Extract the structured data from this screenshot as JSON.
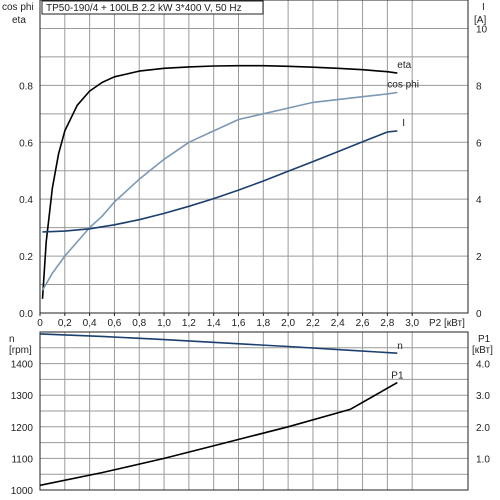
{
  "header": {
    "title": "TP50-190/4 + 100LB   2.2 kW   3*400 V, 50 Hz"
  },
  "colors": {
    "eta": "#000000",
    "cos_phi": "#7b98b5",
    "current": "#1b3f6e",
    "speed": "#1b3f6e",
    "p1": "#000000",
    "grid": "#9a9a9a"
  },
  "chart_data": [
    {
      "type": "line",
      "xlabel": "P2 [кВт]",
      "x_ticks": [
        "0",
        "0,2",
        "0,4",
        "0,6",
        "0,8",
        "1,0",
        "1,2",
        "1,4",
        "1,6",
        "1,8",
        "2,0",
        "2,2",
        "2,4",
        "2,6",
        "2,8",
        "3,0"
      ],
      "xlim": [
        0,
        3.45
      ],
      "left_axis": {
        "label_top": "cos phi",
        "label_bottom": "eta",
        "ylim": [
          0,
          1.1
        ],
        "ticks": [
          "0.0",
          "0.2",
          "0.4",
          "0.6",
          "0.8"
        ]
      },
      "right_axis": {
        "label_top": "I",
        "label_bottom": "[A]",
        "ylim": [
          0,
          11
        ],
        "ticks": [
          "0",
          "2",
          "4",
          "6",
          "8",
          "10"
        ]
      },
      "grid": true,
      "series": [
        {
          "name": "eta",
          "axis": "left",
          "x": [
            0.02,
            0.05,
            0.1,
            0.15,
            0.2,
            0.3,
            0.4,
            0.5,
            0.6,
            0.7,
            0.8,
            1.0,
            1.2,
            1.4,
            1.6,
            1.8,
            2.0,
            2.2,
            2.4,
            2.6,
            2.8,
            2.88
          ],
          "y": [
            0.05,
            0.25,
            0.44,
            0.56,
            0.64,
            0.73,
            0.78,
            0.81,
            0.83,
            0.84,
            0.85,
            0.86,
            0.865,
            0.868,
            0.869,
            0.869,
            0.867,
            0.864,
            0.86,
            0.855,
            0.848,
            0.843
          ]
        },
        {
          "name": "cos phi",
          "axis": "left",
          "x": [
            0.02,
            0.1,
            0.2,
            0.3,
            0.4,
            0.5,
            0.6,
            0.8,
            1.0,
            1.2,
            1.4,
            1.6,
            1.8,
            2.0,
            2.2,
            2.4,
            2.6,
            2.8,
            2.88
          ],
          "y": [
            0.08,
            0.14,
            0.2,
            0.25,
            0.3,
            0.34,
            0.39,
            0.47,
            0.54,
            0.6,
            0.64,
            0.68,
            0.7,
            0.72,
            0.74,
            0.75,
            0.76,
            0.77,
            0.775
          ]
        },
        {
          "name": "I",
          "axis": "right",
          "x": [
            0.02,
            0.2,
            0.4,
            0.6,
            0.8,
            1.0,
            1.2,
            1.4,
            1.6,
            1.8,
            2.0,
            2.2,
            2.4,
            2.6,
            2.8,
            2.88
          ],
          "y": [
            2.85,
            2.88,
            2.96,
            3.1,
            3.28,
            3.5,
            3.75,
            4.02,
            4.32,
            4.64,
            4.98,
            5.32,
            5.67,
            6.02,
            6.36,
            6.4
          ]
        }
      ]
    },
    {
      "type": "line",
      "xlim": [
        0,
        3.45
      ],
      "left_axis": {
        "label_top": "n",
        "label_bottom": "[rpm]",
        "ylim": [
          1000,
          1500
        ],
        "ticks": [
          "1000",
          "1100",
          "1200",
          "1300",
          "1400"
        ]
      },
      "right_axis": {
        "label_top": "P1",
        "label_bottom": "[кВт]",
        "ylim": [
          0,
          5
        ],
        "ticks": [
          "1.0",
          "2.0",
          "3.0",
          "4.0"
        ]
      },
      "grid": true,
      "series": [
        {
          "name": "n",
          "axis": "left",
          "x": [
            0.0,
            0.5,
            1.0,
            1.5,
            2.0,
            2.5,
            2.88
          ],
          "y": [
            1494,
            1486,
            1476,
            1465,
            1454,
            1442,
            1433
          ]
        },
        {
          "name": "P1",
          "axis": "right",
          "x": [
            0.0,
            0.5,
            1.0,
            1.5,
            2.0,
            2.5,
            2.88
          ],
          "y": [
            0.15,
            0.55,
            1.0,
            1.5,
            2.0,
            2.55,
            3.4
          ]
        }
      ]
    }
  ]
}
